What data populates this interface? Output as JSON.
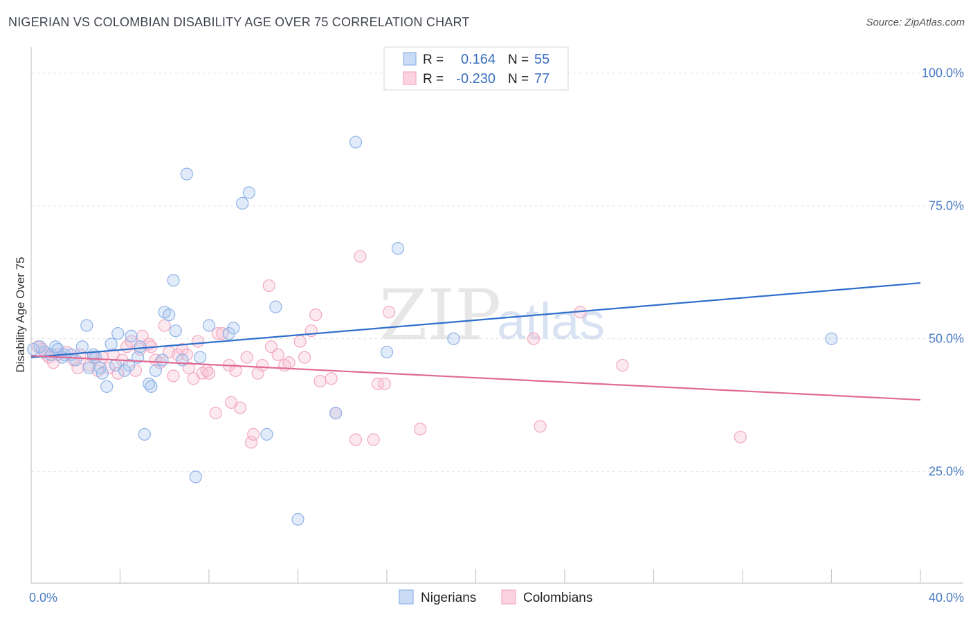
{
  "header": {
    "title": "NIGERIAN VS COLOMBIAN DISABILITY AGE OVER 75 CORRELATION CHART",
    "source": "Source: ZipAtlas.com"
  },
  "watermark": {
    "zip": "ZIP",
    "atlas": "atlas"
  },
  "legend": {
    "r_label": "R =",
    "n_label": "N =",
    "rows": [
      {
        "name": "Nigerians",
        "r": "0.164",
        "n": "55",
        "color": "#8fb3e8",
        "line": "#2f6fcc"
      },
      {
        "name": "Colombians",
        "r": "-0.230",
        "n": "77",
        "color": "#f2a9c0",
        "line": "#e06a93"
      }
    ]
  },
  "chart_data": {
    "type": "scatter",
    "title": "NIGERIAN VS COLOMBIAN DISABILITY AGE OVER 75 CORRELATION CHART",
    "xlabel": "",
    "ylabel": "Disability Age Over 75",
    "xlim": [
      0,
      40
    ],
    "ylim": [
      4,
      104
    ],
    "x_tick_labels": [
      {
        "value": 0,
        "label": "0.0%"
      },
      {
        "value": 40,
        "label": "40.0%"
      }
    ],
    "y_tick_labels": [
      {
        "value": 100,
        "label": "100.0%"
      },
      {
        "value": 75,
        "label": "75.0%"
      },
      {
        "value": 50,
        "label": "50.0%"
      },
      {
        "value": 25,
        "label": "25.0%"
      }
    ],
    "x_minor_ticks": [
      4,
      8,
      12,
      16,
      20,
      24,
      28,
      32,
      36,
      40
    ],
    "gridlines": [
      25,
      50,
      75,
      100
    ],
    "series": [
      {
        "name": "Nigerians",
        "color": "#8fb3e8",
        "trend": {
          "x": [
            0,
            40
          ],
          "y": [
            46.5,
            60.5
          ]
        },
        "points": [
          [
            0.1,
            48
          ],
          [
            0.4,
            48.5
          ],
          [
            0.6,
            47.5
          ],
          [
            0.9,
            47
          ],
          [
            1.1,
            48.5
          ],
          [
            1.2,
            48
          ],
          [
            1.4,
            46.5
          ],
          [
            1.5,
            47
          ],
          [
            1.8,
            47
          ],
          [
            2.0,
            46
          ],
          [
            2.3,
            48.5
          ],
          [
            2.5,
            52.5
          ],
          [
            2.6,
            44.5
          ],
          [
            2.8,
            47
          ],
          [
            2.9,
            46.5
          ],
          [
            3.1,
            44.5
          ],
          [
            3.2,
            43.5
          ],
          [
            3.4,
            41
          ],
          [
            3.6,
            49
          ],
          [
            3.8,
            45
          ],
          [
            3.9,
            51
          ],
          [
            4.2,
            44
          ],
          [
            4.4,
            45
          ],
          [
            4.5,
            50.5
          ],
          [
            4.8,
            46.5
          ],
          [
            4.9,
            48.5
          ],
          [
            5.1,
            32
          ],
          [
            5.3,
            41.5
          ],
          [
            5.4,
            41
          ],
          [
            5.6,
            44
          ],
          [
            5.9,
            46
          ],
          [
            6.0,
            55
          ],
          [
            6.2,
            54.5
          ],
          [
            6.4,
            61
          ],
          [
            6.5,
            51.5
          ],
          [
            6.8,
            46
          ],
          [
            7.0,
            81
          ],
          [
            7.4,
            24
          ],
          [
            7.6,
            46.5
          ],
          [
            8.0,
            52.5
          ],
          [
            8.9,
            51
          ],
          [
            9.1,
            52
          ],
          [
            9.5,
            75.5
          ],
          [
            9.8,
            77.5
          ],
          [
            10.6,
            32
          ],
          [
            11.0,
            56
          ],
          [
            12.0,
            16
          ],
          [
            13.7,
            36
          ],
          [
            14.6,
            87
          ],
          [
            16.0,
            47.5
          ],
          [
            16.5,
            67
          ],
          [
            19.0,
            50
          ],
          [
            36.0,
            50
          ]
        ]
      },
      {
        "name": "Colombians",
        "color": "#f2a9c0",
        "trend": {
          "x": [
            0,
            40
          ],
          "y": [
            46.8,
            38.5
          ]
        },
        "points": [
          [
            0.3,
            48.5
          ],
          [
            0.5,
            48
          ],
          [
            0.7,
            47
          ],
          [
            0.8,
            46.5
          ],
          [
            1.0,
            45.5
          ],
          [
            1.2,
            47
          ],
          [
            1.6,
            47.5
          ],
          [
            1.9,
            46
          ],
          [
            2.1,
            44.5
          ],
          [
            2.2,
            47
          ],
          [
            2.6,
            45
          ],
          [
            2.8,
            46.5
          ],
          [
            3.0,
            44
          ],
          [
            3.2,
            46.5
          ],
          [
            3.5,
            44.5
          ],
          [
            3.7,
            47
          ],
          [
            3.9,
            43.5
          ],
          [
            4.1,
            46
          ],
          [
            4.3,
            48.5
          ],
          [
            4.5,
            49.5
          ],
          [
            4.7,
            44
          ],
          [
            4.9,
            48
          ],
          [
            5.0,
            50.5
          ],
          [
            5.3,
            49
          ],
          [
            5.4,
            48.5
          ],
          [
            5.6,
            46
          ],
          [
            5.8,
            45.5
          ],
          [
            6.0,
            52.5
          ],
          [
            6.2,
            47.5
          ],
          [
            6.4,
            43
          ],
          [
            6.6,
            47
          ],
          [
            6.8,
            48
          ],
          [
            7.0,
            47
          ],
          [
            7.1,
            44.5
          ],
          [
            7.3,
            42.5
          ],
          [
            7.5,
            49.5
          ],
          [
            7.7,
            43.5
          ],
          [
            7.9,
            44
          ],
          [
            8.0,
            43.5
          ],
          [
            8.3,
            36
          ],
          [
            8.4,
            51
          ],
          [
            8.6,
            51
          ],
          [
            8.9,
            45
          ],
          [
            9.0,
            38
          ],
          [
            9.2,
            44
          ],
          [
            9.4,
            37
          ],
          [
            9.7,
            46.5
          ],
          [
            9.9,
            30.5
          ],
          [
            10.0,
            32
          ],
          [
            10.2,
            43.5
          ],
          [
            10.4,
            45
          ],
          [
            10.7,
            60
          ],
          [
            10.8,
            48.5
          ],
          [
            11.1,
            47
          ],
          [
            11.4,
            45
          ],
          [
            11.6,
            45.5
          ],
          [
            12.1,
            49.5
          ],
          [
            12.3,
            46.5
          ],
          [
            12.6,
            51.5
          ],
          [
            12.8,
            54.5
          ],
          [
            13.0,
            42
          ],
          [
            13.5,
            42.5
          ],
          [
            13.7,
            36
          ],
          [
            14.6,
            31
          ],
          [
            14.8,
            65.5
          ],
          [
            15.4,
            31
          ],
          [
            15.6,
            41.5
          ],
          [
            15.9,
            41.5
          ],
          [
            16.1,
            55
          ],
          [
            17.5,
            33
          ],
          [
            22.6,
            50
          ],
          [
            22.9,
            33.5
          ],
          [
            24.7,
            55
          ],
          [
            26.6,
            45
          ],
          [
            31.9,
            31.5
          ]
        ]
      }
    ]
  }
}
